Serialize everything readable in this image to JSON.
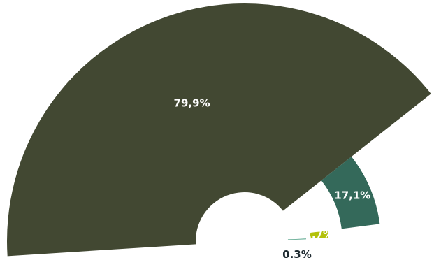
{
  "chart_data": {
    "type": "pie",
    "variant": "semicircle-radial-donut",
    "slices": [
      {
        "label": "79,9%",
        "value": 79.9,
        "color": "#424832",
        "label_color": "#ffffff"
      },
      {
        "label": "17,1%",
        "value": 17.1,
        "color": "#34695a",
        "label_color": "#ffffff"
      },
      {
        "label": "2,7%",
        "value": 2.7,
        "color": "#b3c10a",
        "label_color": "#ffffff"
      },
      {
        "label": "0.3%",
        "value": 0.3,
        "color": "#2f8f6f",
        "label_color": "#1e2a30"
      }
    ]
  }
}
